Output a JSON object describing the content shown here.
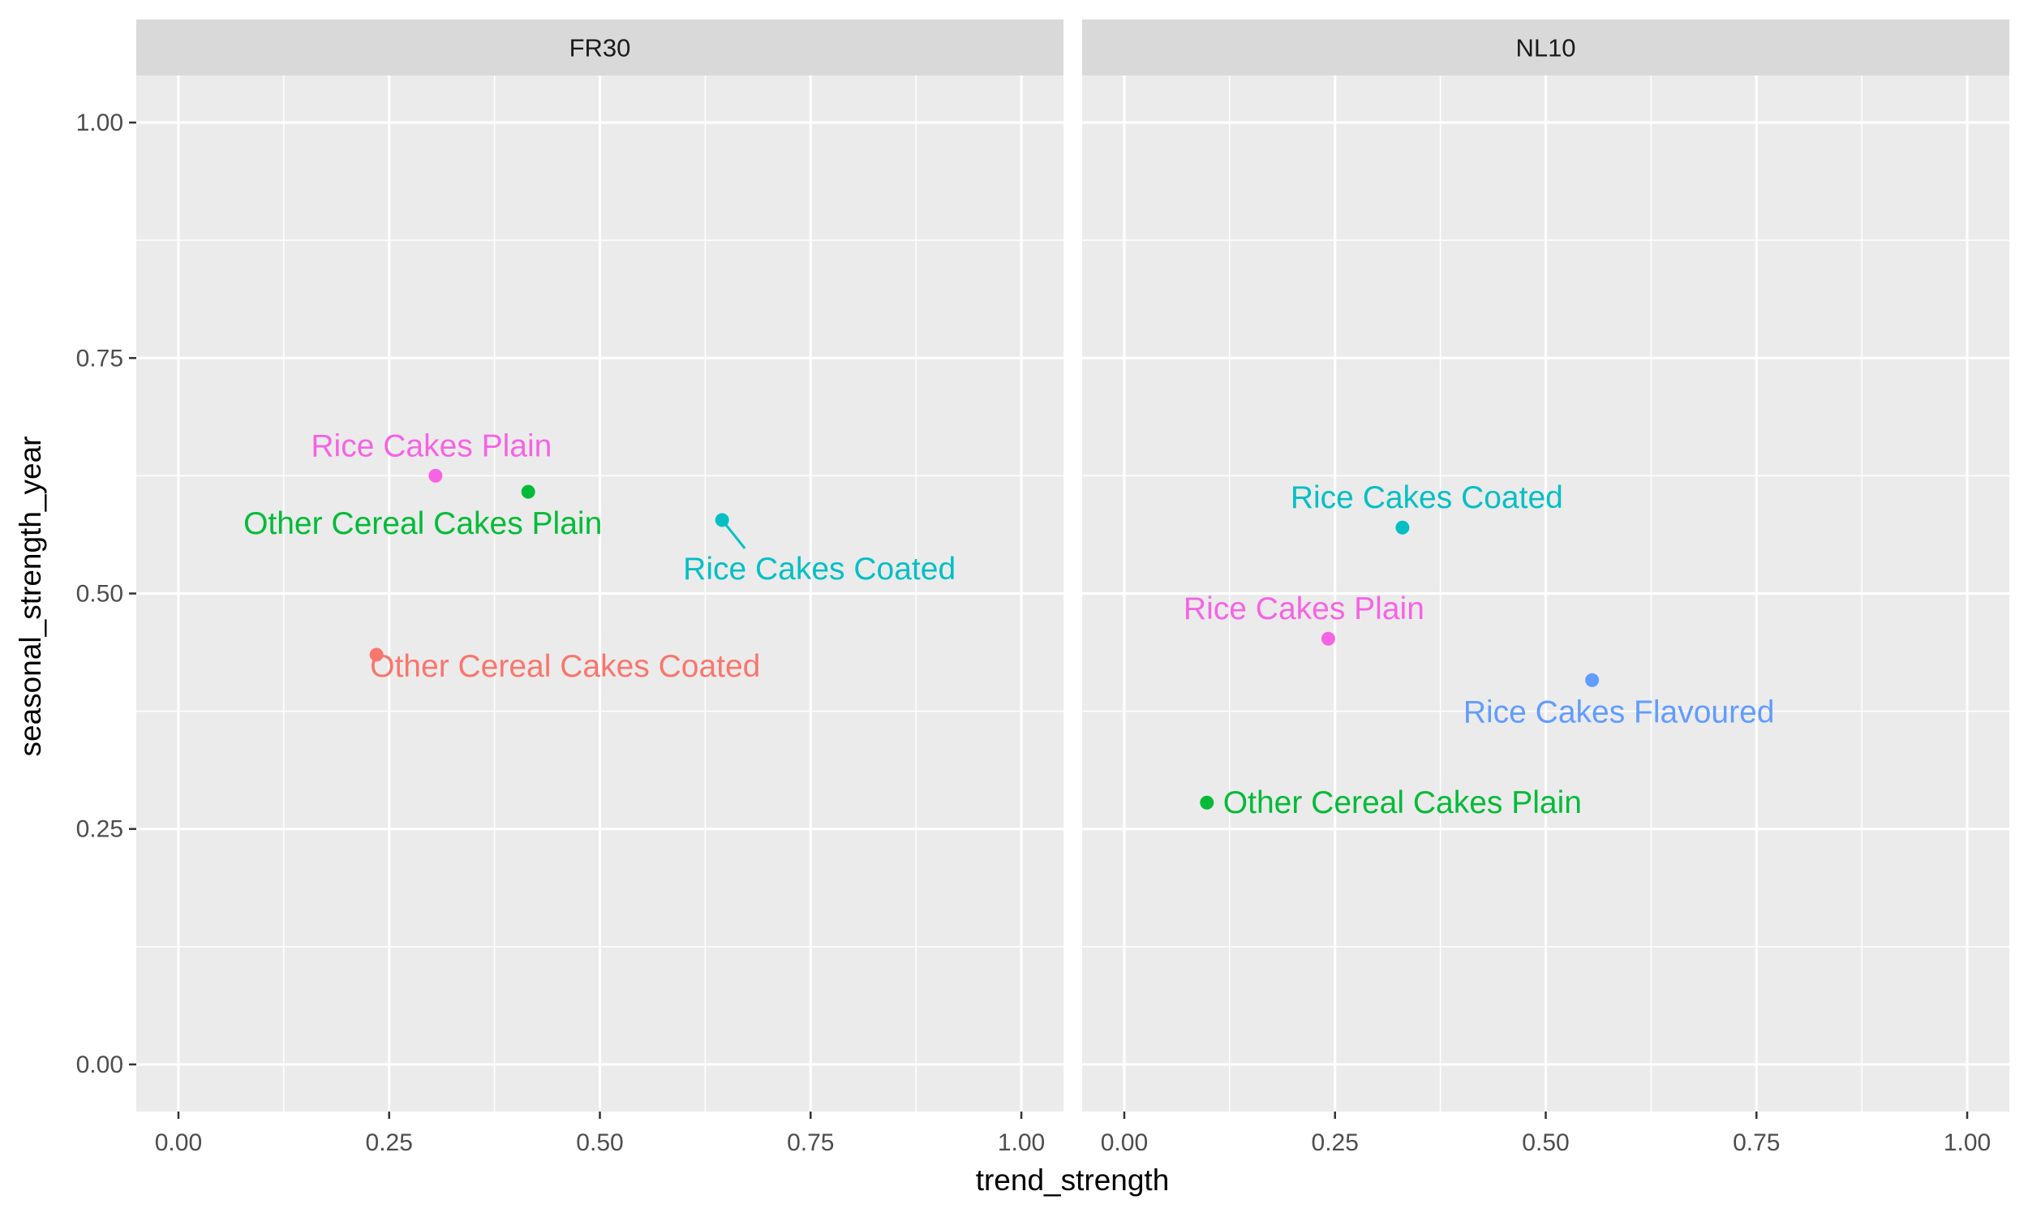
{
  "chart_data": {
    "type": "scatter",
    "xlabel": "trend_strength",
    "ylabel": "seasonal_strength_year",
    "xlim": [
      -0.05,
      1.05
    ],
    "ylim": [
      -0.05,
      1.05
    ],
    "x_ticks": [
      "0.00",
      "0.25",
      "0.50",
      "0.75",
      "1.00"
    ],
    "y_ticks": [
      "0.00",
      "0.25",
      "0.50",
      "0.75",
      "1.00"
    ],
    "x_tick_values": [
      0,
      0.25,
      0.5,
      0.75,
      1.0
    ],
    "y_tick_values": [
      0,
      0.25,
      0.5,
      0.75,
      1.0
    ],
    "grid": true,
    "legend": "none",
    "colors": {
      "Other Cereal Cakes Coated": "#F8766D",
      "Other Cereal Cakes Plain": "#00BA38",
      "Rice Cakes Coated": "#00BFC4",
      "Rice Cakes Flavoured": "#619CFF",
      "Rice Cakes Plain": "#F564E3"
    },
    "panels": [
      {
        "name": "FR30",
        "points": [
          {
            "label": "Rice Cakes Plain",
            "x": 0.305,
            "y": 0.625
          },
          {
            "label": "Other Cereal Cakes Plain",
            "x": 0.415,
            "y": 0.608
          },
          {
            "label": "Rice Cakes Coated",
            "x": 0.645,
            "y": 0.578
          },
          {
            "label": "Other Cereal Cakes Coated",
            "x": 0.235,
            "y": 0.435
          }
        ]
      },
      {
        "name": "NL10",
        "points": [
          {
            "label": "Rice Cakes Coated",
            "x": 0.33,
            "y": 0.57
          },
          {
            "label": "Rice Cakes Plain",
            "x": 0.242,
            "y": 0.452
          },
          {
            "label": "Rice Cakes Flavoured",
            "x": 0.555,
            "y": 0.408
          },
          {
            "label": "Other Cereal Cakes Plain",
            "x": 0.098,
            "y": 0.278
          }
        ]
      }
    ]
  }
}
